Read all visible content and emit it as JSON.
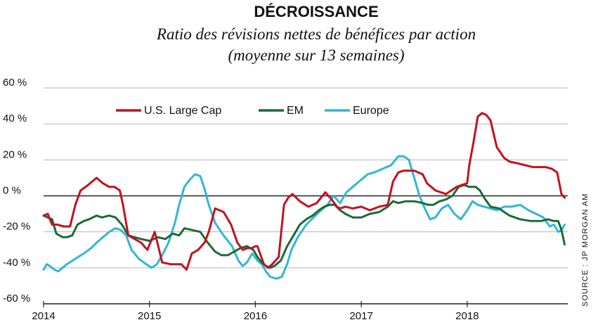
{
  "chart_data": {
    "type": "line",
    "title": "DÉCROISSANCE",
    "subtitle_line1": "Ratio des révisions nettes de bénéfices par action",
    "subtitle_line2": "(moyenne sur 13 semaines)",
    "source": "SOURCE : JP MORGAN AM",
    "xlim": [
      2014,
      2018.95
    ],
    "ylim": [
      -60,
      60
    ],
    "x_ticks": [
      2014,
      2015,
      2016,
      2017,
      2018
    ],
    "x_tick_labels": [
      "2014",
      "2015",
      "2016",
      "2017",
      "2018"
    ],
    "y_ticks": [
      60,
      40,
      20,
      0,
      -20,
      -40,
      -60
    ],
    "y_tick_labels": [
      "60 %",
      "40 %",
      "20 %",
      "0 %",
      "-20 %",
      "-40 %",
      "-60 %"
    ],
    "grid": "horizontal",
    "legend_placement": "top",
    "series": [
      {
        "name": "U.S. Large Cap",
        "color": "#c1121f",
        "x": [
          2014.0,
          2014.04,
          2014.08,
          2014.13,
          2014.19,
          2014.25,
          2014.3,
          2014.35,
          2014.42,
          2014.5,
          2014.56,
          2014.62,
          2014.67,
          2014.72,
          2014.75,
          2014.8,
          2014.86,
          2014.92,
          2014.98,
          2015.05,
          2015.12,
          2015.2,
          2015.3,
          2015.35,
          2015.4,
          2015.46,
          2015.52,
          2015.56,
          2015.62,
          2015.7,
          2015.77,
          2015.83,
          2015.88,
          2015.93,
          2015.97,
          2016.0,
          2016.02,
          2016.05,
          2016.08,
          2016.12,
          2016.16,
          2016.22,
          2016.27,
          2016.31,
          2016.35,
          2016.42,
          2016.5,
          2016.58,
          2016.66,
          2016.72,
          2016.77,
          2016.8,
          2016.85,
          2016.92,
          2017.0,
          2017.08,
          2017.17,
          2017.25,
          2017.3,
          2017.35,
          2017.4,
          2017.43,
          2017.5,
          2017.58,
          2017.62,
          2017.7,
          2017.8,
          2017.9,
          2018.0,
          2018.02,
          2018.06,
          2018.1,
          2018.14,
          2018.18,
          2018.22,
          2018.28,
          2018.35,
          2018.4,
          2018.48,
          2018.55,
          2018.62,
          2018.68,
          2018.74,
          2018.8,
          2018.85,
          2018.89,
          2018.92
        ],
        "y": [
          -11,
          -10,
          -16,
          -16,
          -17,
          -17,
          -5,
          3,
          6,
          10,
          7,
          5,
          5,
          3,
          -5,
          -22,
          -24,
          -26,
          -30,
          -20,
          -37,
          -38,
          -38,
          -41,
          -32,
          -30,
          -26,
          -20,
          -7,
          -9,
          -16,
          -26,
          -30,
          -29,
          -29,
          -28,
          -28,
          -33,
          -38,
          -40,
          -38,
          -34,
          -5,
          -1,
          1,
          -3,
          -6,
          -4,
          2,
          -2,
          -6,
          -7,
          -6,
          -7,
          -6,
          -8,
          -6,
          -5,
          8,
          13,
          14,
          14,
          14,
          12,
          7,
          3,
          1,
          5,
          7,
          17,
          30,
          44,
          46,
          45,
          42,
          27,
          21,
          19,
          18,
          17,
          16,
          16,
          16,
          15,
          13,
          1,
          -1
        ]
      },
      {
        "name": "EM",
        "color": "#1a6b36",
        "x": [
          2014.0,
          2014.04,
          2014.08,
          2014.12,
          2014.18,
          2014.22,
          2014.27,
          2014.32,
          2014.38,
          2014.43,
          2014.5,
          2014.55,
          2014.62,
          2014.68,
          2014.74,
          2014.8,
          2014.86,
          2014.92,
          2015.0,
          2015.08,
          2015.15,
          2015.22,
          2015.28,
          2015.33,
          2015.4,
          2015.48,
          2015.55,
          2015.62,
          2015.68,
          2015.74,
          2015.8,
          2015.86,
          2015.92,
          2015.98,
          2016.02,
          2016.06,
          2016.1,
          2016.14,
          2016.18,
          2016.24,
          2016.3,
          2016.36,
          2016.42,
          2016.48,
          2016.54,
          2016.6,
          2016.65,
          2016.7,
          2016.75,
          2016.8,
          2016.85,
          2016.92,
          2017.0,
          2017.08,
          2017.17,
          2017.25,
          2017.3,
          2017.35,
          2017.42,
          2017.5,
          2017.58,
          2017.63,
          2017.68,
          2017.74,
          2017.8,
          2017.86,
          2017.92,
          2017.97,
          2018.02,
          2018.08,
          2018.12,
          2018.16,
          2018.22,
          2018.3,
          2018.4,
          2018.5,
          2018.6,
          2018.7,
          2018.76,
          2018.82,
          2018.86,
          2018.89,
          2018.92
        ],
        "y": [
          -11,
          -12,
          -13,
          -21,
          -23,
          -23,
          -22,
          -16,
          -14,
          -13,
          -11,
          -12,
          -11,
          -12,
          -16,
          -22,
          -23,
          -24,
          -25,
          -23,
          -24,
          -21,
          -22,
          -18,
          -19,
          -20,
          -26,
          -31,
          -33,
          -33,
          -31,
          -29,
          -28,
          -30,
          -34,
          -37,
          -39,
          -40,
          -39,
          -36,
          -28,
          -22,
          -16,
          -13,
          -11,
          -8,
          -6,
          -5,
          -5,
          -8,
          -10,
          -12,
          -12,
          -10,
          -9,
          -6,
          -3,
          -4,
          -3,
          -3,
          -4,
          -5,
          -5,
          -3,
          -2,
          0,
          5,
          6,
          5,
          5,
          3,
          -1,
          -6,
          -7,
          -11,
          -13,
          -14,
          -14,
          -13,
          -14,
          -14,
          -19,
          -27
        ]
      },
      {
        "name": "Europe",
        "color": "#31b7d4",
        "x": [
          2014.0,
          2014.03,
          2014.06,
          2014.1,
          2014.14,
          2014.18,
          2014.22,
          2014.3,
          2014.38,
          2014.45,
          2014.52,
          2014.58,
          2014.62,
          2014.68,
          2014.73,
          2014.78,
          2014.83,
          2014.9,
          2014.97,
          2015.02,
          2015.07,
          2015.12,
          2015.18,
          2015.24,
          2015.28,
          2015.33,
          2015.38,
          2015.43,
          2015.48,
          2015.52,
          2015.56,
          2015.62,
          2015.7,
          2015.78,
          2015.84,
          2015.88,
          2015.92,
          2015.97,
          2016.02,
          2016.06,
          2016.1,
          2016.14,
          2016.2,
          2016.25,
          2016.3,
          2016.34,
          2016.4,
          2016.48,
          2016.55,
          2016.62,
          2016.68,
          2016.74,
          2016.8,
          2016.86,
          2016.92,
          2017.0,
          2017.06,
          2017.12,
          2017.2,
          2017.28,
          2017.35,
          2017.4,
          2017.45,
          2017.5,
          2017.55,
          2017.6,
          2017.65,
          2017.7,
          2017.76,
          2017.82,
          2017.88,
          2017.94,
          2018.0,
          2018.05,
          2018.1,
          2018.16,
          2018.22,
          2018.28,
          2018.35,
          2018.42,
          2018.5,
          2018.58,
          2018.65,
          2018.72,
          2018.78,
          2018.82,
          2018.86,
          2018.89,
          2018.92
        ],
        "y": [
          -41,
          -38,
          -39,
          -41,
          -42,
          -40,
          -38,
          -35,
          -32,
          -29,
          -25,
          -22,
          -20,
          -18,
          -19,
          -22,
          -30,
          -35,
          -38,
          -40,
          -38,
          -33,
          -26,
          -15,
          -5,
          5,
          9,
          12,
          11,
          4,
          -5,
          -15,
          -22,
          -28,
          -36,
          -39,
          -37,
          -32,
          -36,
          -38,
          -42,
          -45,
          -46,
          -45,
          -38,
          -30,
          -23,
          -16,
          -12,
          -8,
          -5,
          0,
          -4,
          2,
          5,
          9,
          12,
          13,
          15,
          17,
          22,
          22,
          20,
          10,
          0,
          -7,
          -13,
          -12,
          -7,
          -5,
          -10,
          -13,
          -8,
          -3,
          -5,
          -6,
          -7,
          -8,
          -6,
          -6,
          -5,
          -8,
          -10,
          -12,
          -17,
          -16,
          -20,
          -19,
          -16
        ]
      }
    ]
  }
}
